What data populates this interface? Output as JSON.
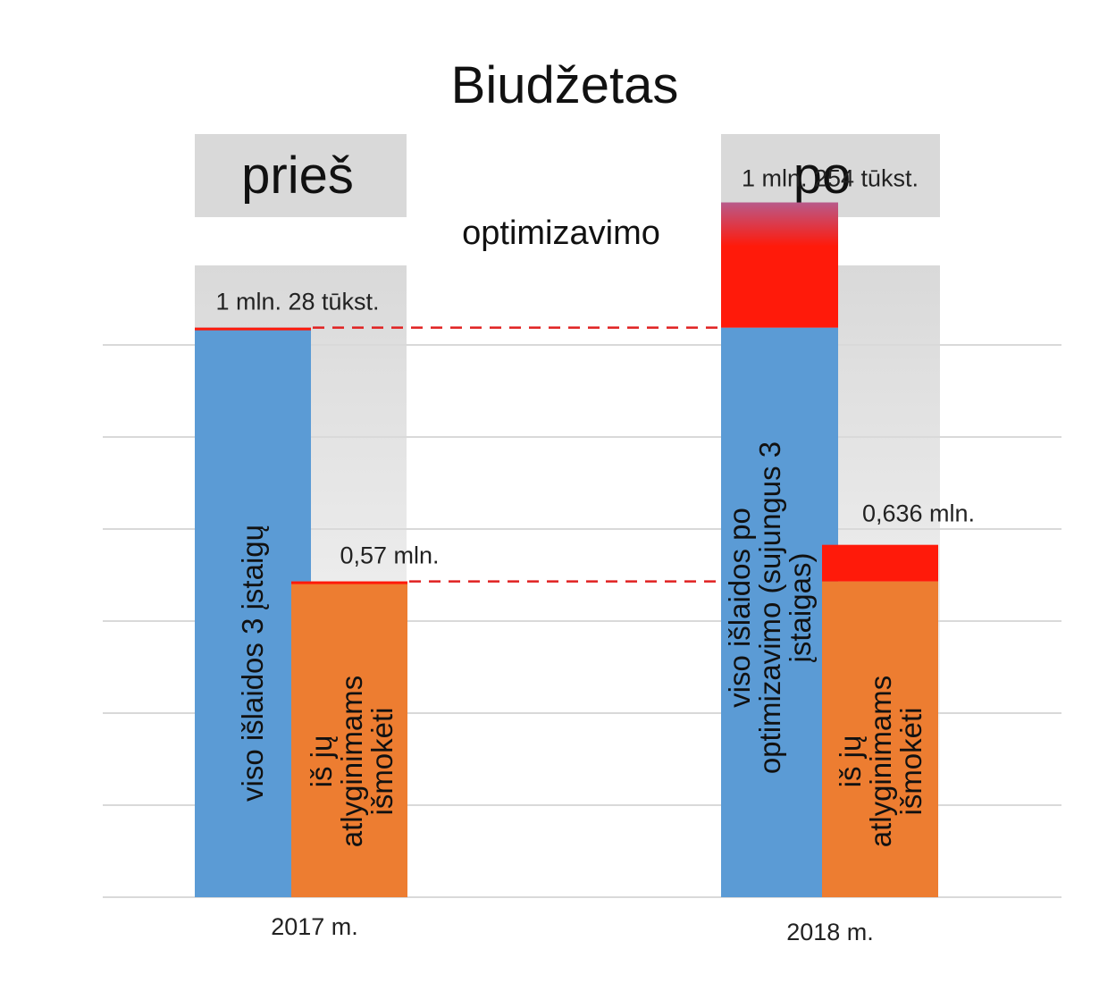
{
  "title": "Biudžetas",
  "header_left": "prieš",
  "header_right": "po",
  "subtitle": "optimizavimo",
  "colors": {
    "expenses": "#5b9bd5",
    "salaries": "#ed7d31",
    "increase": "#ff1a0a",
    "header_bg": "#d9d9d9",
    "grid": "#d9d9d9",
    "dashed": "#e02020"
  },
  "chart_data": {
    "type": "bar",
    "categories": [
      "2017 m.",
      "2018 m."
    ],
    "ylim": [
      0,
      1.5
    ],
    "grid": true,
    "series": [
      {
        "name": "viso išlaidos",
        "values": [
          1.028,
          1.254
        ],
        "bar_labels": [
          "viso išlaidos 3 įstaigų",
          "viso išlaidos po optimizavimo (sujungus 3 įstaigas)"
        ],
        "data_labels": [
          "1 mln. 28 tūkst.",
          "1 mln. 254 tūkst."
        ]
      },
      {
        "name": "iš jų atlyginimams išmokėti",
        "values": [
          0.57,
          0.636
        ],
        "bar_labels": [
          "iš jų atlyginimams išmokėti",
          "iš jų atlyginimams išmokėti"
        ],
        "data_labels": [
          "0,57 mln.",
          "0,636 mln."
        ]
      }
    ],
    "reference_levels": [
      1.028,
      0.57
    ]
  }
}
